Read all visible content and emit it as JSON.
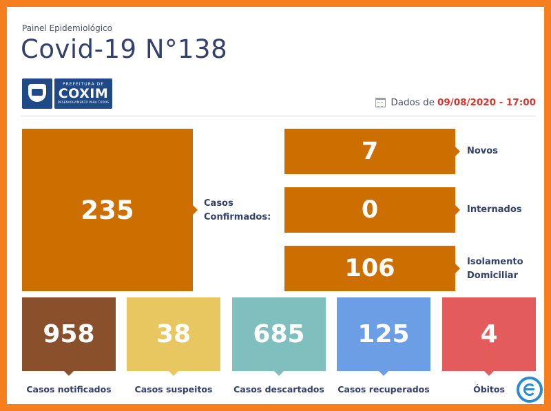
{
  "header": {
    "subtitle": "Painel Epidemiológico",
    "title": "Covid-19 N°138",
    "date_prefix": "Dados de",
    "date": "09/08/2020 - 17:00"
  },
  "logo": {
    "line1": "PREFEITURA DE",
    "line2": "COXIM",
    "line3": "DESENVOLVIMENTO PARA TODOS"
  },
  "confirmed": {
    "value": "235",
    "label_line1": "Casos",
    "label_line2": "Confirmados:"
  },
  "breakdown": [
    {
      "value": "7",
      "label_line1": "Novos",
      "label_line2": ""
    },
    {
      "value": "0",
      "label_line1": "Internados",
      "label_line2": ""
    },
    {
      "value": "106",
      "label_line1": "Isolamento",
      "label_line2": "Domiciliar"
    }
  ],
  "cards": [
    {
      "value": "958",
      "label": "Casos notificados",
      "color": "#8a4f2b"
    },
    {
      "value": "38",
      "label": "Casos suspeitos",
      "color": "#e8c660"
    },
    {
      "value": "685",
      "label": "Casos descartados",
      "color": "#7fbfbd"
    },
    {
      "value": "125",
      "label": "Casos recuperados",
      "color": "#6b9ee5"
    },
    {
      "value": "4",
      "label": "Óbitos",
      "color": "#e35b5b"
    }
  ],
  "colors": {
    "frame": "#f57f1f",
    "main_box": "#cc6f00",
    "date_highlight": "#d9352b",
    "text": "#33406b"
  }
}
